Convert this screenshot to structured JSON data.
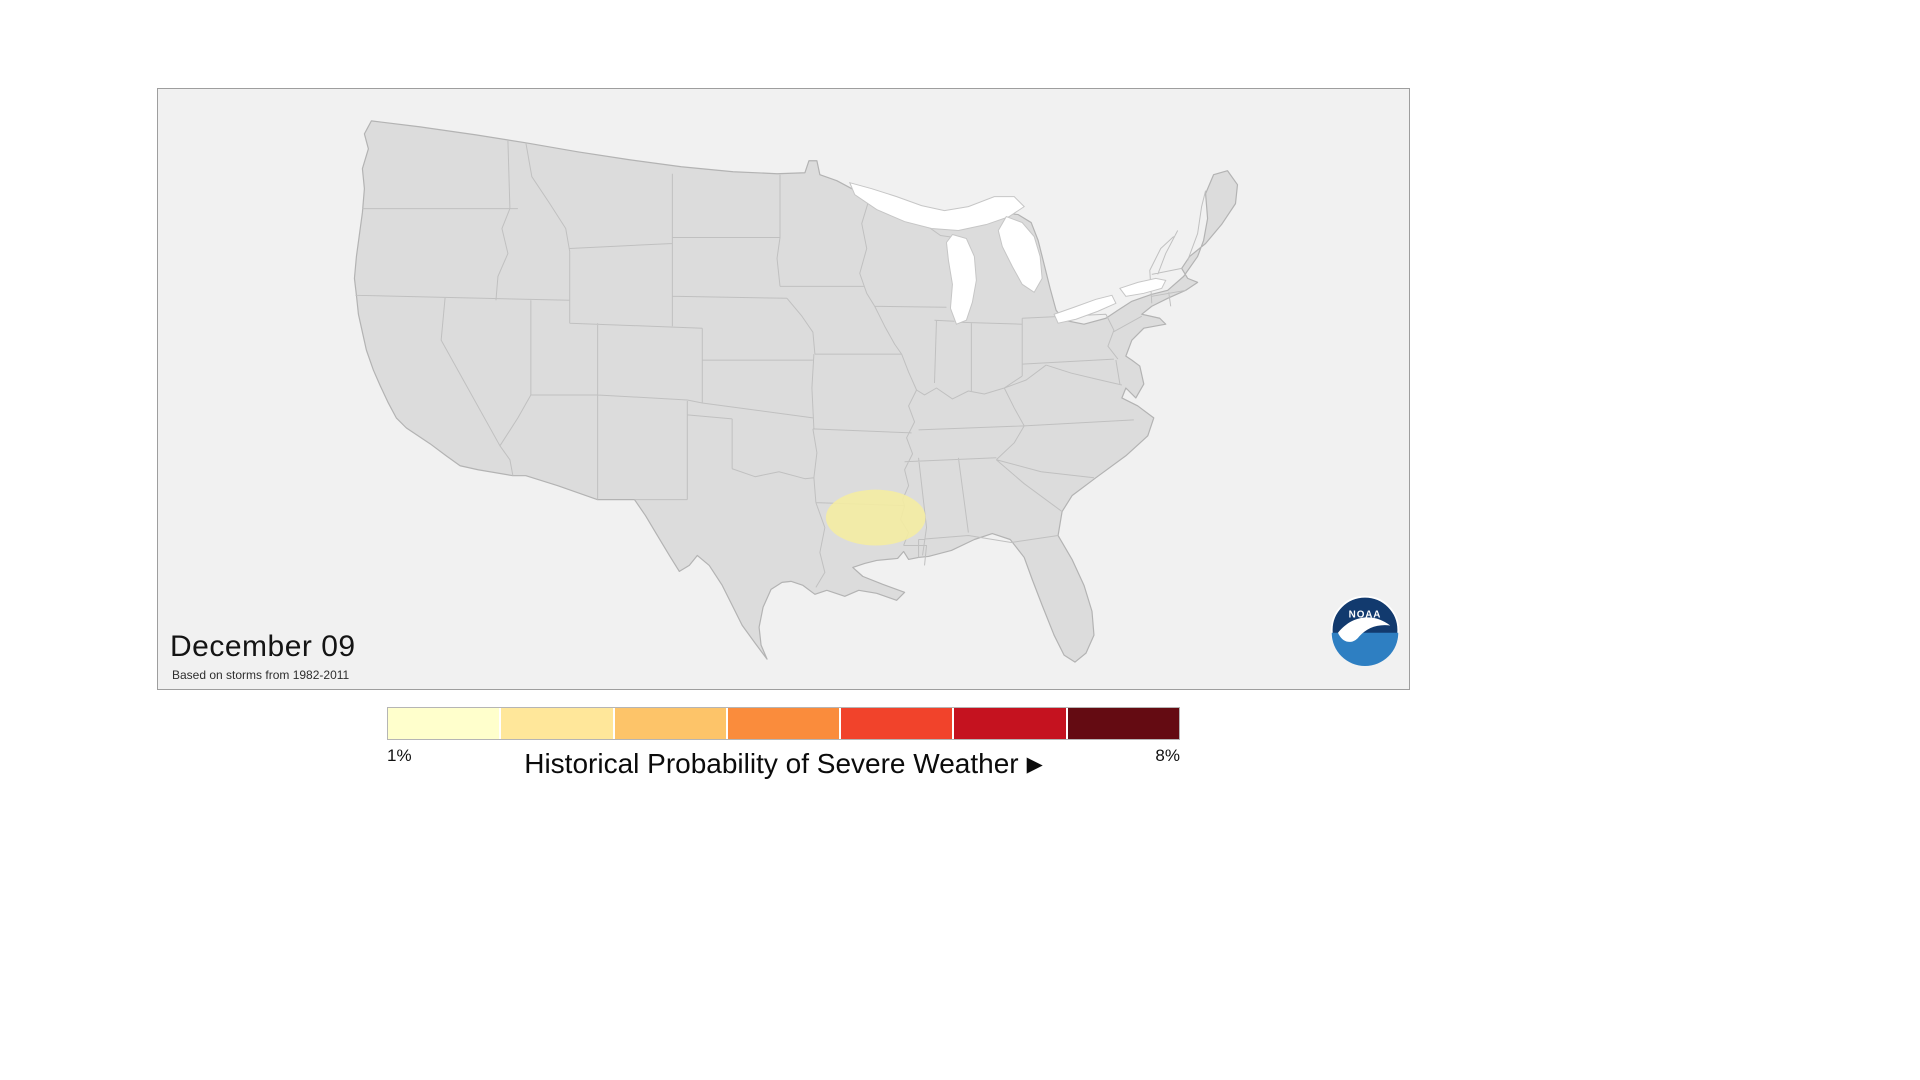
{
  "panel": {
    "date_label": "December 09",
    "subtitle": "Based on storms from 1982-2011"
  },
  "noaa_logo": {
    "text": "NOAA"
  },
  "legend": {
    "min_label": "1%",
    "max_label": "8%",
    "caption": "Historical Probability of Severe Weather",
    "play_icon": "▶",
    "colors": [
      "#FFFFCC",
      "#FFE79A",
      "#FDC469",
      "#FA8C3C",
      "#F1432B",
      "#C5121F",
      "#640B12"
    ]
  },
  "map": {
    "land_color": "#DCDCDC",
    "border_color": "#C0C0C0",
    "water_color": "#FFFFFF",
    "background_color": "#F1F1F1",
    "highlight": {
      "label": "1% historical severe weather probability area (Lower Mississippi Valley / ArkLaTex region)",
      "color": "#F4ECA2"
    }
  }
}
